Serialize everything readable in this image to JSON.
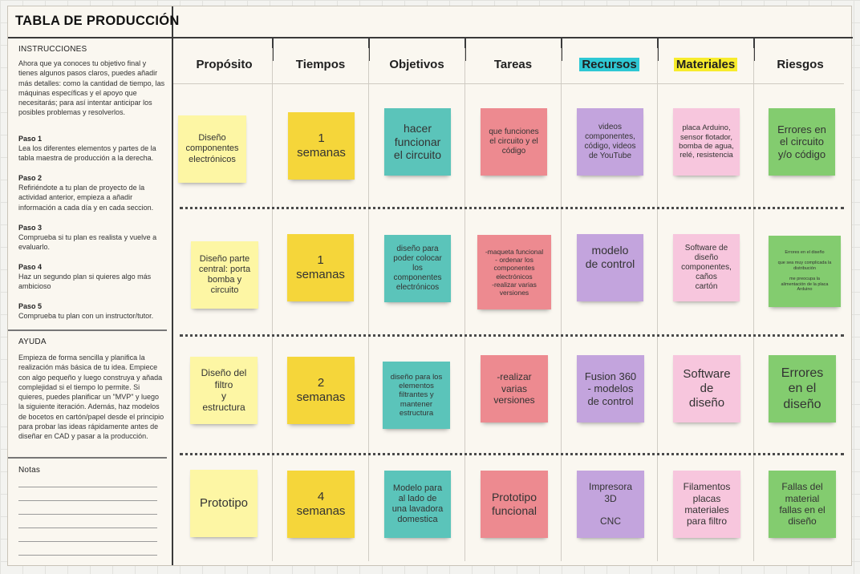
{
  "title": "TABLA DE PRODUCCIÓN",
  "instructions": {
    "label": "INSTRUCCIONES",
    "text": "Ahora que ya conoces tu objetivo final y tienes algunos pasos claros, puedes añadir más detalles: como la cantidad de tiempo, las máquinas específicas y el apoyo que necesitarás; para así intentar anticipar los posibles problemas y resolverlos.",
    "steps": [
      {
        "title": "Paso 1",
        "text": "Lea los diferentes elementos y partes de la tabla maestra de producción a la derecha."
      },
      {
        "title": "Paso 2",
        "text": "Refiriéndote a tu plan de proyecto de la actividad anterior, empieza a añadir información a cada día y en cada seccion."
      },
      {
        "title": "Paso 3",
        "text": "Comprueba si tu plan es realista y vuelve a evaluarlo."
      },
      {
        "title": "Paso 4",
        "text": "Haz un segundo plan si quieres algo más ambicioso"
      },
      {
        "title": "Paso 5",
        "text": "Comprueba tu plan con un instructor/tutor."
      }
    ]
  },
  "help": {
    "label": "AYUDA",
    "text": "Empieza de forma sencilla y planifica la realización más básica de tu idea. Empiece con algo pequeño y luego construya y añada complejidad si el tiempo lo permite. Si quieres, puedes planificar un \"MVP\" y luego la siguiente iteración. Además, haz modelos de bocetos en cartón/papel desde el principio para probar las ideas rápidamente antes de diseñar en CAD y pasar a la producción."
  },
  "notes": {
    "label": "Notas"
  },
  "columns": [
    "Propósito",
    "Tiempos",
    "Objetivos",
    "Tareas",
    "Recursos",
    "Materiales",
    "Riesgos"
  ],
  "colors": {
    "recursos_highlight": "#2ec8d4",
    "materiales_highlight": "#f7ec2c",
    "proposito_note": "#fdf6a4",
    "tiempos_note": "#f5d63a",
    "objetivos_note": "#5bc4ba",
    "tareas_note": "#ed8a90",
    "recursos_note": "#c3a4dd",
    "materiales_note": "#f7c6dd",
    "riesgos_note": "#83cc6f"
  },
  "rows": [
    {
      "proposito": "Diseño\ncomponentes\nelectrónicos",
      "tiempos": "1\nsemanas",
      "objetivos": "hacer\nfuncionar\nel circuito",
      "tareas": "que funciones\nel circuito y el\ncódigo",
      "recursos": "videos\ncomponentes,\ncódigo, videos\nde YouTube",
      "materiales": "placa Arduino,\nsensor flotador,\nbomba de agua,\nrelé, resistencia",
      "riesgos": "Errores en\nel circuito\ny/o código"
    },
    {
      "proposito": "Diseño parte\ncentral: porta\nbomba y\ncircuito",
      "tiempos": "1\nsemanas",
      "objetivos": "diseño para\npoder colocar\nlos\ncomponentes\nelectrónicos",
      "tareas": "-maqueta funcional\n- ordenar los\ncomponentes\nelectrónicos\n-realizar varias\nversiones",
      "recursos": "modelo\nde control",
      "materiales": "Software de\ndiseño\ncomponentes,\ncaños\ncartón",
      "riesgos": "Errores en el diseño\n\nque sea muy complicada la\ndistribución\n\nme preocupa la\nalimentación de la placa\nArduino"
    },
    {
      "proposito": "Diseño del\nfiltro\ny\nestructura",
      "tiempos": "2\nsemanas",
      "objetivos": "diseño para los\nelementos\nfiltrantes y\nmantener\nestructura",
      "tareas": "-realizar\nvarias\nversiones",
      "recursos": "Fusion 360\n- modelos\nde control",
      "materiales": "Software\nde\ndiseño",
      "riesgos": "Errores\nen el\ndiseño"
    },
    {
      "proposito": "Prototipo",
      "tiempos": "4\nsemanas",
      "objetivos": "Modelo para\nal lado de\nuna lavadora\ndomestica",
      "tareas": "Prototipo\nfuncional",
      "recursos": "Impresora\n3D\n\nCNC",
      "materiales": "Filamentos\nplacas\nmateriales\npara filtro",
      "riesgos": "Fallas del\nmaterial\nfallas en el\ndiseño"
    }
  ]
}
